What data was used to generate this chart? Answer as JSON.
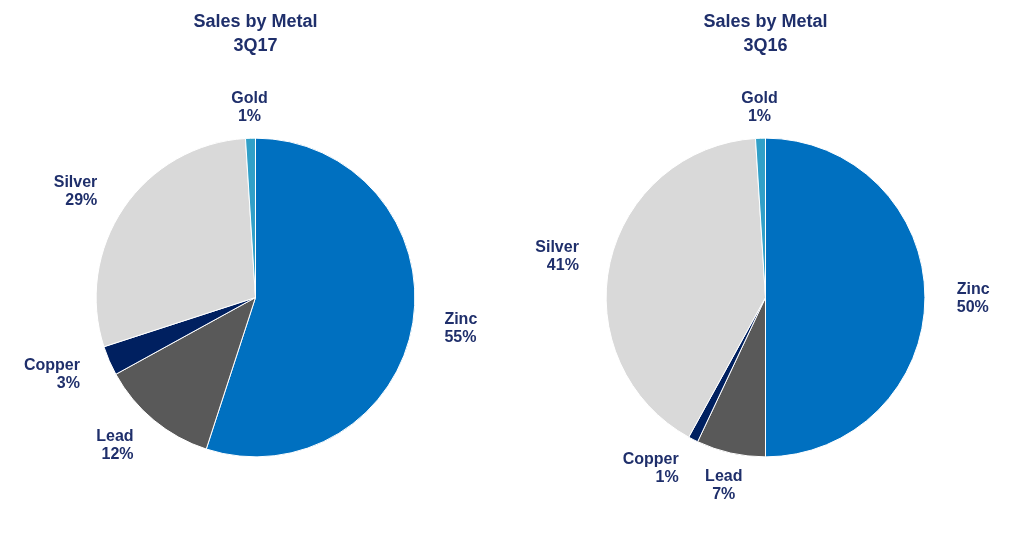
{
  "chart_data": [
    {
      "type": "pie",
      "title": "Sales by Metal",
      "subtitle": "3Q17",
      "categories": [
        "Zinc",
        "Lead",
        "Copper",
        "Silver",
        "Gold"
      ],
      "values": [
        55,
        12,
        3,
        29,
        1
      ],
      "colors": [
        "#0070c0",
        "#595959",
        "#002060",
        "#d9d9d9",
        "#31a0c8"
      ],
      "value_labels": [
        "55%",
        "12%",
        "3%",
        "29%",
        "1%"
      ]
    },
    {
      "type": "pie",
      "title": "Sales by Metal",
      "subtitle": "3Q16",
      "categories": [
        "Zinc",
        "Lead",
        "Copper",
        "Silver",
        "Gold"
      ],
      "values": [
        50,
        7,
        1,
        41,
        1
      ],
      "colors": [
        "#0070c0",
        "#595959",
        "#002060",
        "#d9d9d9",
        "#31a0c8"
      ],
      "value_labels": [
        "50%",
        "7%",
        "1%",
        "41%",
        "1%"
      ]
    }
  ]
}
